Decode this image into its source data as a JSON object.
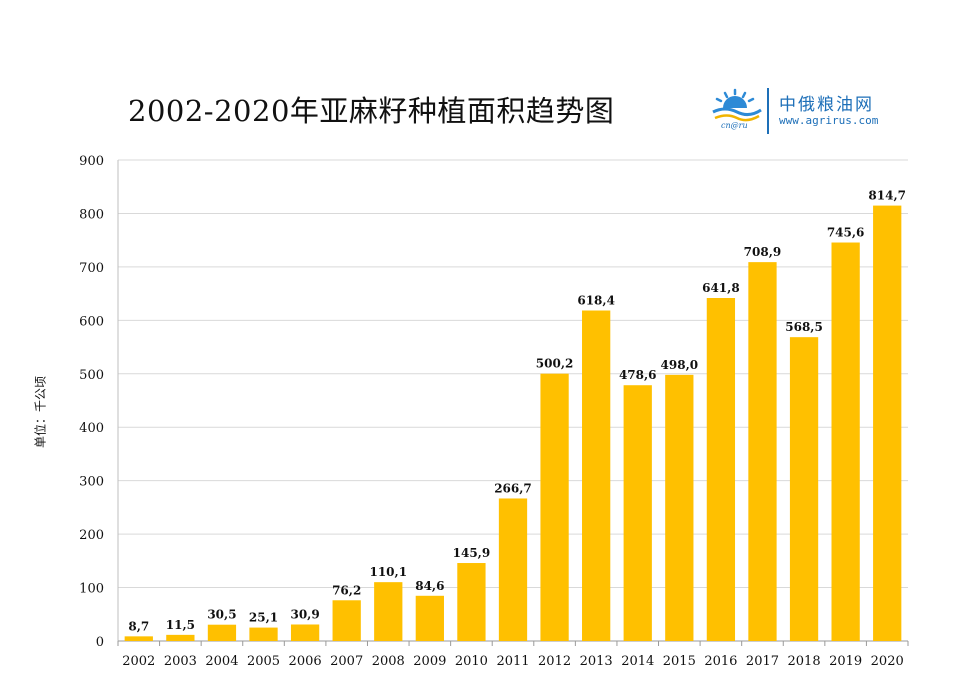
{
  "logo": {
    "name": "中俄粮油网",
    "url": "www.agrirus.com",
    "sub": "cn@ru"
  },
  "chart_data": {
    "type": "bar",
    "title": "2002-2020年亚麻籽种植面积趋势图",
    "ylabel": "单位：千公顷",
    "xlabel": "",
    "categories": [
      "2002",
      "2003",
      "2004",
      "2005",
      "2006",
      "2007",
      "2008",
      "2009",
      "2010",
      "2011",
      "2012",
      "2013",
      "2014",
      "2015",
      "2016",
      "2017",
      "2018",
      "2019",
      "2020"
    ],
    "values": [
      8.7,
      11.5,
      30.5,
      25.1,
      30.9,
      76.2,
      110.1,
      84.6,
      145.9,
      266.7,
      500.2,
      618.4,
      478.6,
      498.0,
      641.8,
      708.9,
      568.5,
      745.6,
      814.7
    ],
    "data_labels": [
      "8,7",
      "11,5",
      "30,5",
      "25,1",
      "30,9",
      "76,2",
      "110,1",
      "84,6",
      "145,9",
      "266,7",
      "500,2",
      "618,4",
      "478,6",
      "498,0",
      "641,8",
      "708,9",
      "568,5",
      "745,6",
      "814,7"
    ],
    "ylim": [
      0,
      900
    ],
    "yticks": [
      0,
      100,
      200,
      300,
      400,
      500,
      600,
      700,
      800,
      900
    ],
    "grid": true,
    "legend": "none",
    "bar_color": "#FFC000",
    "grid_color": "#d9d9d9"
  }
}
